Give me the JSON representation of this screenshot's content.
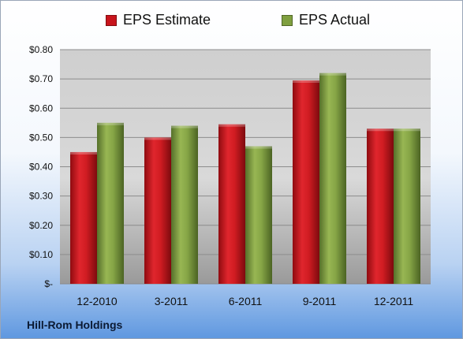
{
  "chart_data": {
    "type": "bar",
    "categories": [
      "12-2010",
      "3-2011",
      "6-2011",
      "9-2011",
      "12-2011"
    ],
    "series": [
      {
        "name": "EPS Estimate",
        "values": [
          0.45,
          0.5,
          0.545,
          0.695,
          0.53
        ],
        "color": "#c8141c"
      },
      {
        "name": "EPS Actual",
        "values": [
          0.55,
          0.54,
          0.47,
          0.72,
          0.53
        ],
        "color": "#7f9f3f"
      }
    ],
    "y_ticks": [
      {
        "value": 0.0,
        "label": "$-"
      },
      {
        "value": 0.1,
        "label": "$0.10"
      },
      {
        "value": 0.2,
        "label": "$0.20"
      },
      {
        "value": 0.3,
        "label": "$0.30"
      },
      {
        "value": 0.4,
        "label": "$0.40"
      },
      {
        "value": 0.5,
        "label": "$0.50"
      },
      {
        "value": 0.6,
        "label": "$0.60"
      },
      {
        "value": 0.7,
        "label": "$0.70"
      },
      {
        "value": 0.8,
        "label": "$0.80"
      }
    ],
    "ylim": [
      0,
      0.8
    ],
    "grid": true,
    "legend_position": "top"
  },
  "legend": {
    "estimate_label": "EPS Estimate",
    "actual_label": "EPS Actual"
  },
  "footer": {
    "brand": "Hill-Rom Holdings"
  }
}
